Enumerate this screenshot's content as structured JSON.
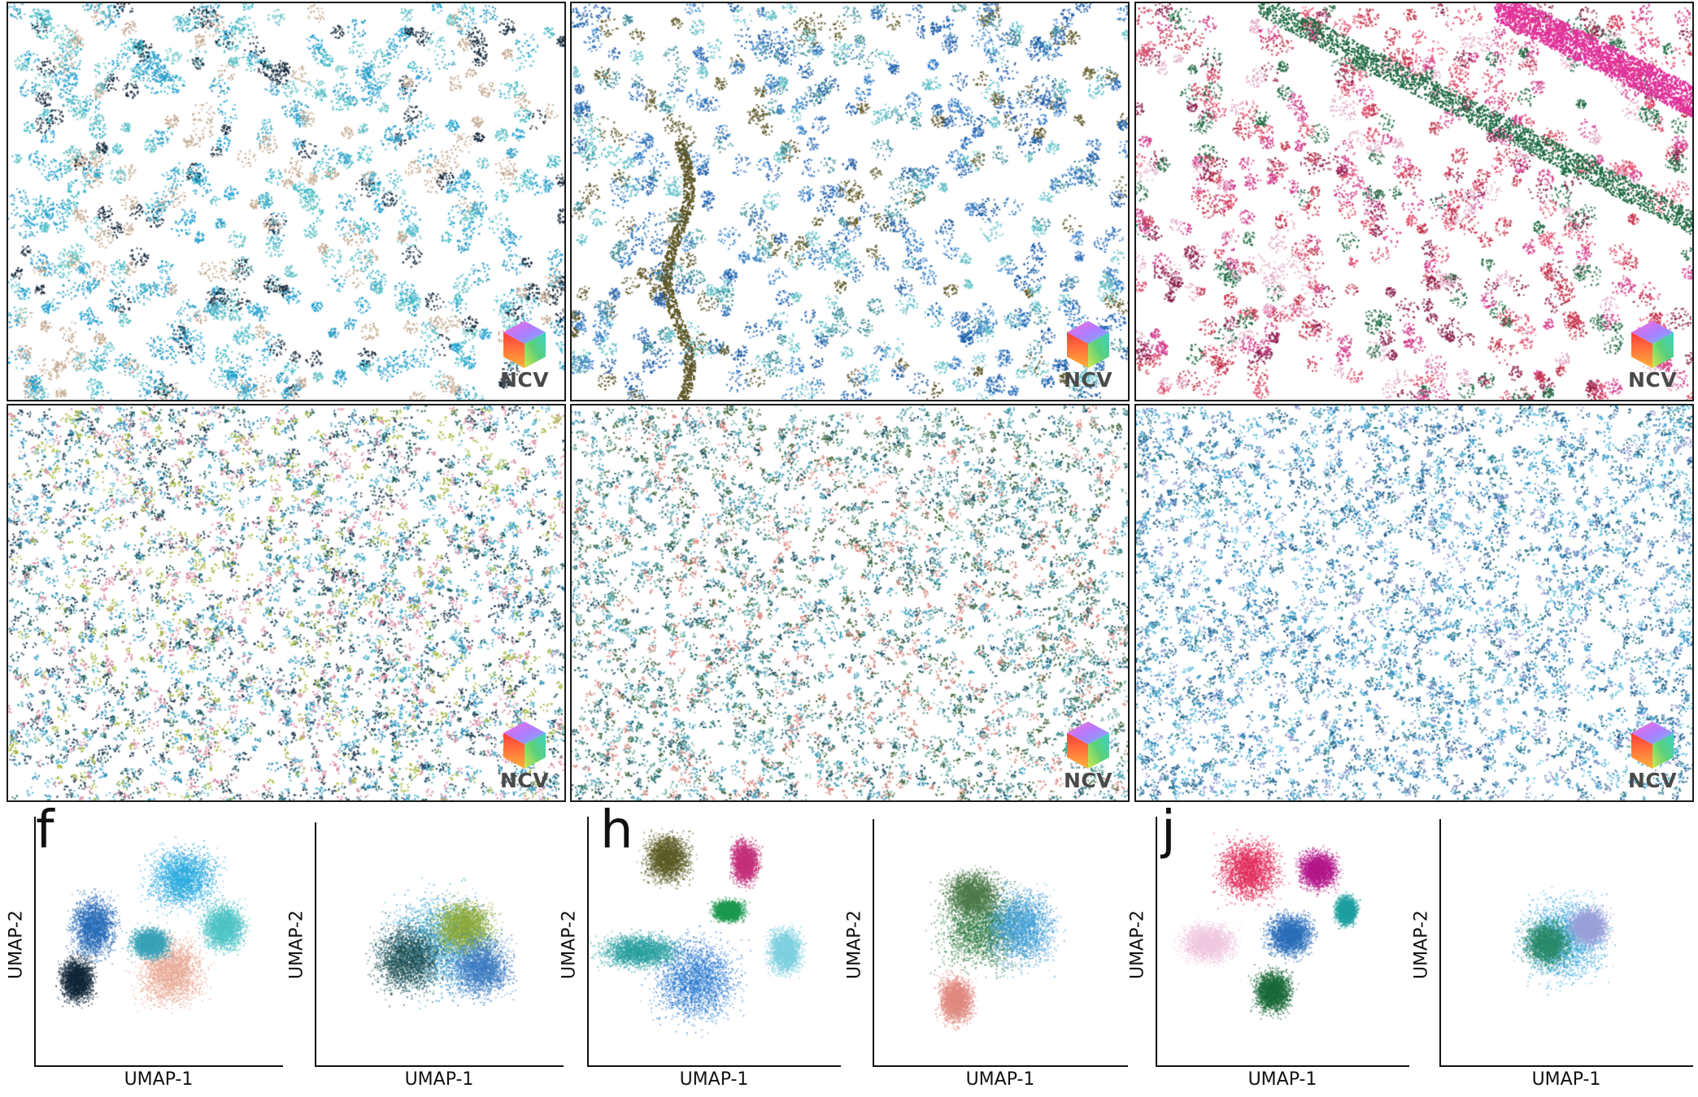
{
  "ncv_logo_text": "NCV",
  "panel_letters": [
    "f",
    "h",
    "j"
  ],
  "umap": {
    "xlabel": "UMAP-1",
    "ylabel": "UMAP-2"
  },
  "image_panels": [
    {
      "name": "panel-top-left",
      "palette": [
        "#1fa0cf",
        "#3fb8c6",
        "#2e9ec6",
        "#c2a98f",
        "#0f2438",
        "#5fc2c6"
      ]
    },
    {
      "name": "panel-top-middle",
      "palette": [
        "#2a6db8",
        "#3480c9",
        "#1d5ca8",
        "#3f8f9a",
        "#5e5828",
        "#63c2c8"
      ]
    },
    {
      "name": "panel-top-right",
      "palette": [
        "#c4324a",
        "#1e6a42",
        "#d23a8a",
        "#e24b6a",
        "#8b1f4d",
        "#e2a9c6"
      ]
    },
    {
      "name": "panel-mid-left",
      "palette": [
        "#2b8eba",
        "#1b5a5a",
        "#4db0c8",
        "#a3b83e",
        "#d88aa0",
        "#1e3a52"
      ]
    },
    {
      "name": "panel-mid-middle",
      "palette": [
        "#2e7a78",
        "#3c9cba",
        "#1e5466",
        "#6fb0a8",
        "#d9867e",
        "#446b3d"
      ]
    },
    {
      "name": "panel-mid-right",
      "palette": [
        "#3a9fcf",
        "#2a78b0",
        "#62bedb",
        "#1e5c8a",
        "#8c9ad0",
        "#277a8a"
      ]
    }
  ]
}
